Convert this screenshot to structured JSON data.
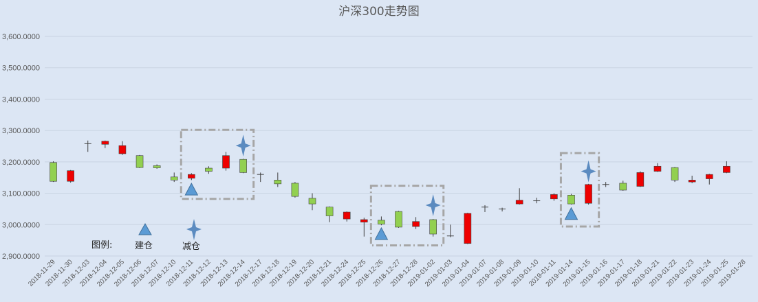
{
  "chart_data": {
    "type": "candlestick",
    "title": "沪深300走势图",
    "ylim": [
      2900,
      3600
    ],
    "yticks": [
      "3,600.0000",
      "3,500.0000",
      "3,400.0000",
      "3,300.0000",
      "3,200.0000",
      "3,100.0000",
      "3,000.0000",
      "2,900.0000"
    ],
    "ytick_values": [
      3600,
      3500,
      3400,
      3300,
      3200,
      3100,
      3000,
      2900
    ],
    "grid": true,
    "up_color": "#ee0000",
    "down_color": "#92d050",
    "candles": [
      {
        "date": "2018-11-29",
        "open": 3198,
        "close": 3138,
        "high": 3202,
        "low": 3136
      },
      {
        "date": "2018-11-30",
        "open": 3138,
        "close": 3172,
        "high": 3174,
        "low": 3134
      },
      {
        "date": "2018-12-03",
        "open": 3258,
        "close": 3258,
        "high": 3268,
        "low": 3232
      },
      {
        "date": "2018-12-04",
        "open": 3256,
        "close": 3266,
        "high": 3268,
        "low": 3244
      },
      {
        "date": "2018-12-05",
        "open": 3226,
        "close": 3252,
        "high": 3266,
        "low": 3222
      },
      {
        "date": "2018-12-06",
        "open": 3220,
        "close": 3182,
        "high": 3222,
        "low": 3180
      },
      {
        "date": "2018-12-07",
        "open": 3188,
        "close": 3181,
        "high": 3192,
        "low": 3178
      },
      {
        "date": "2018-12-10",
        "open": 3152,
        "close": 3142,
        "high": 3166,
        "low": 3136
      },
      {
        "date": "2018-12-11",
        "open": 3148,
        "close": 3160,
        "high": 3164,
        "low": 3142
      },
      {
        "date": "2018-12-12",
        "open": 3180,
        "close": 3170,
        "high": 3186,
        "low": 3162
      },
      {
        "date": "2018-12-13",
        "open": 3180,
        "close": 3220,
        "high": 3232,
        "low": 3172
      },
      {
        "date": "2018-12-14",
        "open": 3208,
        "close": 3166,
        "high": 3210,
        "low": 3164
      },
      {
        "date": "2018-12-17",
        "open": 3160,
        "close": 3160,
        "high": 3166,
        "low": 3136
      },
      {
        "date": "2018-12-18",
        "open": 3142,
        "close": 3130,
        "high": 3166,
        "low": 3120
      },
      {
        "date": "2018-12-19",
        "open": 3132,
        "close": 3090,
        "high": 3136,
        "low": 3086
      },
      {
        "date": "2018-12-20",
        "open": 3084,
        "close": 3066,
        "high": 3100,
        "low": 3046
      },
      {
        "date": "2018-12-21",
        "open": 3056,
        "close": 3028,
        "high": 3058,
        "low": 3008
      },
      {
        "date": "2018-12-24",
        "open": 3018,
        "close": 3040,
        "high": 3042,
        "low": 3010
      },
      {
        "date": "2018-12-25",
        "open": 3008,
        "close": 3016,
        "high": 3022,
        "low": 2962
      },
      {
        "date": "2018-12-26",
        "open": 3014,
        "close": 3002,
        "high": 3026,
        "low": 2998
      },
      {
        "date": "2018-12-27",
        "open": 3042,
        "close": 2992,
        "high": 3044,
        "low": 2990
      },
      {
        "date": "2018-12-28",
        "open": 2994,
        "close": 3010,
        "high": 3024,
        "low": 2986
      },
      {
        "date": "2019-01-02",
        "open": 3016,
        "close": 2970,
        "high": 3018,
        "low": 2962
      },
      {
        "date": "2019-01-03",
        "open": 2964,
        "close": 2964,
        "high": 3000,
        "low": 2960
      },
      {
        "date": "2019-01-04",
        "open": 2940,
        "close": 3036,
        "high": 3038,
        "low": 2938
      },
      {
        "date": "2019-01-07",
        "open": 3056,
        "close": 3056,
        "high": 3062,
        "low": 3040
      },
      {
        "date": "2019-01-08",
        "open": 3050,
        "close": 3050,
        "high": 3054,
        "low": 3042
      },
      {
        "date": "2019-01-09",
        "open": 3066,
        "close": 3078,
        "high": 3116,
        "low": 3064
      },
      {
        "date": "2019-01-10",
        "open": 3076,
        "close": 3076,
        "high": 3086,
        "low": 3068
      },
      {
        "date": "2019-01-11",
        "open": 3082,
        "close": 3096,
        "high": 3100,
        "low": 3076
      },
      {
        "date": "2019-01-14",
        "open": 3094,
        "close": 3066,
        "high": 3098,
        "low": 3064
      },
      {
        "date": "2019-01-15",
        "open": 3068,
        "close": 3128,
        "high": 3130,
        "low": 3064
      },
      {
        "date": "2019-01-16",
        "open": 3128,
        "close": 3128,
        "high": 3136,
        "low": 3120
      },
      {
        "date": "2019-01-17",
        "open": 3132,
        "close": 3110,
        "high": 3140,
        "low": 3108
      },
      {
        "date": "2019-01-18",
        "open": 3122,
        "close": 3166,
        "high": 3170,
        "low": 3120
      },
      {
        "date": "2019-01-21",
        "open": 3170,
        "close": 3186,
        "high": 3196,
        "low": 3168
      },
      {
        "date": "2019-01-22",
        "open": 3182,
        "close": 3142,
        "high": 3184,
        "low": 3136
      },
      {
        "date": "2019-01-23",
        "open": 3136,
        "close": 3142,
        "high": 3156,
        "low": 3132
      },
      {
        "date": "2019-01-24",
        "open": 3146,
        "close": 3160,
        "high": 3162,
        "low": 3128
      },
      {
        "date": "2019-01-25",
        "open": 3166,
        "close": 3186,
        "high": 3202,
        "low": 3164
      },
      {
        "date": "2019-01-28",
        "open": null,
        "close": null,
        "high": null,
        "low": null
      }
    ],
    "markers": [
      {
        "type": "buy",
        "date": "2018-12-11",
        "value": 3112
      },
      {
        "type": "sell",
        "date": "2018-12-14",
        "value": 3252
      },
      {
        "type": "buy",
        "date": "2018-12-26",
        "value": 2970
      },
      {
        "type": "sell",
        "date": "2019-01-02",
        "value": 3062
      },
      {
        "type": "buy",
        "date": "2019-01-14",
        "value": 3034
      },
      {
        "type": "sell",
        "date": "2019-01-15",
        "value": 3170
      }
    ],
    "boxes": [
      {
        "from": "2018-12-11",
        "to": "2018-12-14",
        "high": 3302,
        "low": 3082
      },
      {
        "from": "2018-12-26",
        "to": "2019-01-02",
        "high": 3124,
        "low": 2934
      },
      {
        "from": "2019-01-14",
        "to": "2019-01-15",
        "high": 3228,
        "low": 2994
      }
    ],
    "legend": {
      "title": "图例:",
      "buy_label": "建仓",
      "sell_label": "减仓"
    },
    "colors": {
      "buy_marker": "#5b9bd5",
      "sell_marker": "#5b8bc0",
      "box": "#a6a6a6",
      "grid": "#c9d3e2",
      "background": "#dce6f4"
    }
  }
}
